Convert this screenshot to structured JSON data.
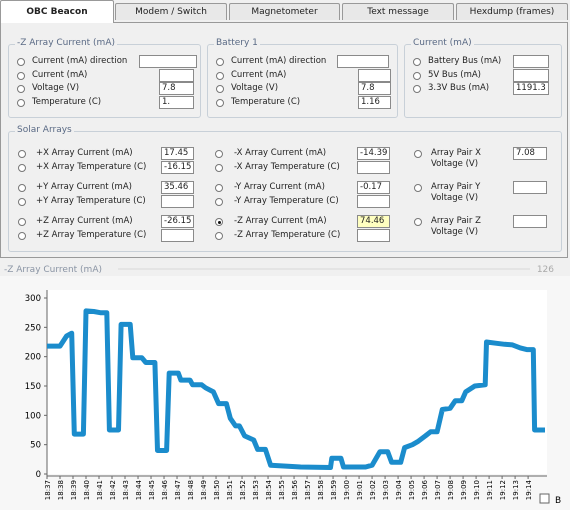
{
  "tabs": [
    {
      "label": "OBC Beacon",
      "active": true
    },
    {
      "label": "Modem / Switch"
    },
    {
      "label": "Magnetometer"
    },
    {
      "label": "Text message"
    },
    {
      "label": "Hexdump (frames)"
    }
  ],
  "groups": [
    {
      "title": "-Z Array Current (mA)",
      "rows": [
        {
          "label": "Current (mA) direction"
        },
        {
          "label": "Current (mA)"
        },
        {
          "label": "Voltage (V)",
          "value": 7.8
        },
        {
          "label": "Temperature (C)",
          "value": "1."
        }
      ]
    },
    {
      "title": "Battery 1",
      "rows": [
        {
          "label": "Current (mA) direction"
        },
        {
          "label": "Current (mA)"
        },
        {
          "label": "Voltage (V)",
          "value": 7.8
        },
        {
          "label": "Temperature (C)",
          "value": 1.16
        }
      ]
    },
    {
      "title": "Current (mA)",
      "rows": [
        {
          "label": "Battery Bus (mA)"
        },
        {
          "label": "5V Bus (mA)"
        },
        {
          "label": "3.3V Bus (mA)",
          "value": "1191.3"
        }
      ]
    }
  ],
  "solar": {
    "title": "Solar Arrays",
    "columns": [
      [
        {
          "label": "+X Array Current (mA)",
          "value": 17.45
        },
        {
          "label": "+X Array Temperature (C)",
          "value": -16.15
        },
        {
          "label": "+Y Array Current (mA)",
          "value": 35.46
        },
        {
          "label": "+Y Array Temperature (C)"
        },
        {
          "label": "+Z Array Current (mA)",
          "value": -26.15
        },
        {
          "label": "+Z Array Temperature (C)"
        }
      ],
      [
        {
          "label": "-X Array Current (mA)",
          "value": -14.39
        },
        {
          "label": "-X Array Temperature (C)"
        },
        {
          "label": "-Y Array Current (mA)",
          "value": -0.17
        },
        {
          "label": "-Y Array Temperature (C)"
        },
        {
          "label": "-Z Array Current (mA)",
          "value": 74.46,
          "selected": true
        },
        {
          "label": "-Z Array Temperature (C)"
        }
      ],
      [
        {
          "label": "Array Pair X Voltage (V)",
          "value": 7.08
        },
        {
          "label": "Array Pair Y Voltage (V)"
        },
        {
          "label": "Array Pair Z Voltage (V)"
        }
      ]
    ]
  },
  "chart_data": {
    "type": "line",
    "title": "-Z Array Current (mA)",
    "annotation": "126",
    "color": "#1b8ccc",
    "grid": false,
    "x": [
      0,
      1,
      1.5,
      1.9,
      2.1,
      2.8,
      3,
      3.6,
      4.1,
      4.6,
      4.8,
      5.5,
      5.7,
      6.4,
      6.6,
      7.3,
      7.6,
      8.3,
      8.5,
      9.2,
      9.4,
      10.1,
      10.3,
      11,
      11.2,
      11.9,
      12.2,
      12.8,
      13.2,
      13.8,
      14.1,
      14.5,
      14.8,
      15.2,
      15.9,
      16.2,
      16.8,
      17.2,
      18.7,
      19.5,
      21.8,
      21.9,
      22.6,
      22.8,
      24.5,
      25,
      25.6,
      26.2,
      26.5,
      27.2,
      27.5,
      28.1,
      28.5,
      29.1,
      29.5,
      30,
      30.4,
      31,
      31.4,
      31.9,
      32.2,
      32.9,
      33.7,
      33.8,
      34.5,
      35.2,
      35.8,
      36.4,
      36.9,
      37.4,
      37.5,
      38.3
    ],
    "values": [
      218,
      218,
      235,
      240,
      68,
      68,
      278,
      277,
      275,
      275,
      75,
      75,
      255,
      255,
      198,
      198,
      190,
      190,
      40,
      40,
      172,
      172,
      160,
      160,
      152,
      152,
      147,
      140,
      120,
      120,
      95,
      82,
      82,
      65,
      58,
      42,
      42,
      15,
      13,
      12,
      11,
      27,
      27,
      12,
      12,
      15,
      38,
      38,
      20,
      20,
      45,
      50,
      55,
      65,
      72,
      72,
      110,
      112,
      125,
      125,
      140,
      150,
      152,
      225,
      223,
      221,
      220,
      215,
      212,
      212,
      75,
      75
    ],
    "xlim": [
      0,
      38.3
    ],
    "ylim": [
      0,
      300
    ],
    "yticks": [
      0,
      50,
      100,
      150,
      200,
      250,
      300
    ],
    "xticks": [
      {
        "value": 0,
        "label": "18:37"
      },
      {
        "value": 1,
        "label": "18:38"
      },
      {
        "value": 2,
        "label": "18:39"
      },
      {
        "value": 3,
        "label": "18:40"
      },
      {
        "value": 4,
        "label": "18:41"
      },
      {
        "value": 5,
        "label": "18:42"
      },
      {
        "value": 6,
        "label": "18:43"
      },
      {
        "value": 7,
        "label": "18:44"
      },
      {
        "value": 8,
        "label": "18:45"
      },
      {
        "value": 9,
        "label": "18:46"
      },
      {
        "value": 10,
        "label": "18:47"
      },
      {
        "value": 11,
        "label": "18:48"
      },
      {
        "value": 12,
        "label": "18:49"
      },
      {
        "value": 13,
        "label": "18:50"
      },
      {
        "value": 14,
        "label": "18:51"
      },
      {
        "value": 15,
        "label": "18:52"
      },
      {
        "value": 16,
        "label": "18:53"
      },
      {
        "value": 17,
        "label": "18:54"
      },
      {
        "value": 18,
        "label": "18:55"
      },
      {
        "value": 19,
        "label": "18:56"
      },
      {
        "value": 20,
        "label": "18:57"
      },
      {
        "value": 21,
        "label": "18:58"
      },
      {
        "value": 22,
        "label": "18:59"
      },
      {
        "value": 23,
        "label": "19:00"
      },
      {
        "value": 24,
        "label": "19:01"
      },
      {
        "value": 25,
        "label": "19:02"
      },
      {
        "value": 26,
        "label": "19:03"
      },
      {
        "value": 27,
        "label": "19:04"
      },
      {
        "value": 28,
        "label": "19:05"
      },
      {
        "value": 29,
        "label": "19:06"
      },
      {
        "value": 30,
        "label": "19:07"
      },
      {
        "value": 31,
        "label": "19:08"
      },
      {
        "value": 32,
        "label": "19:09"
      },
      {
        "value": 33,
        "label": "19:10"
      },
      {
        "value": 34,
        "label": "19:11"
      },
      {
        "value": 35,
        "label": "19:12"
      },
      {
        "value": 36,
        "label": "19:13"
      },
      {
        "value": 37,
        "label": "19:14"
      }
    ]
  },
  "checkbox_label": "B"
}
